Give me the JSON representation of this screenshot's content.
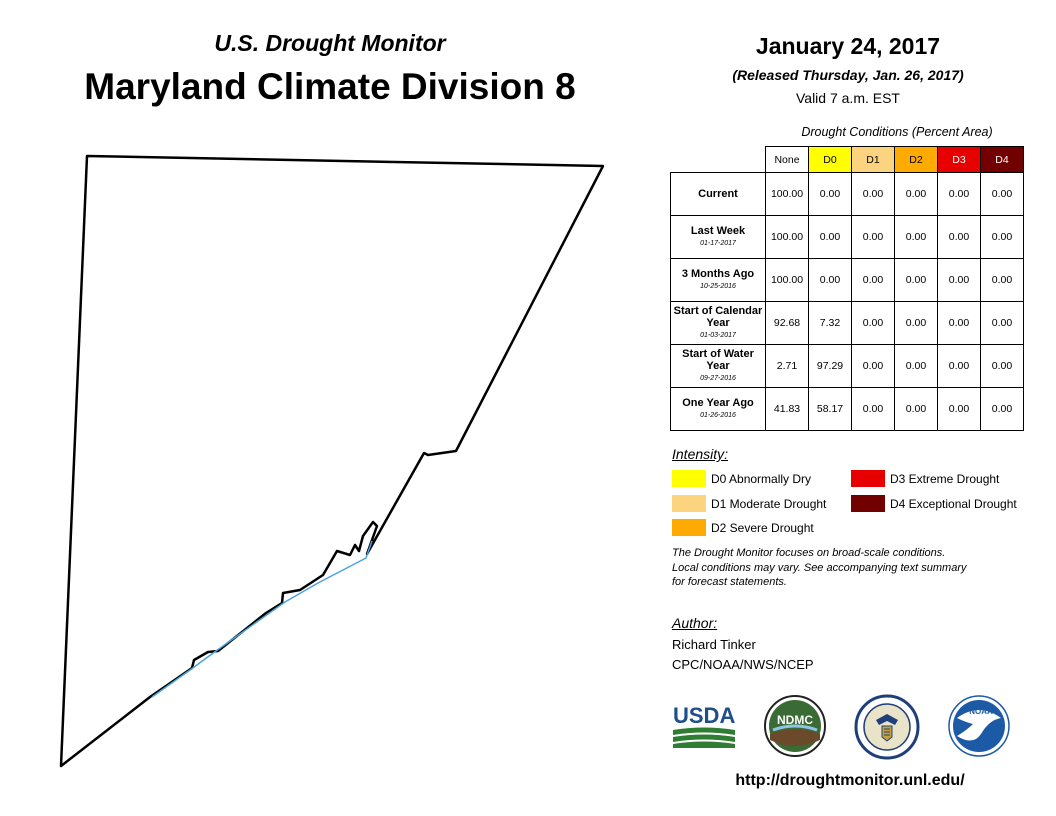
{
  "header": {
    "subtitle": "U.S. Drought Monitor",
    "title": "Maryland Climate Division 8"
  },
  "date_block": {
    "date": "January 24, 2017",
    "released": "(Released Thursday, Jan. 26, 2017)",
    "valid": "Valid 7 a.m. EST"
  },
  "conditions": {
    "title": "Drought Conditions (Percent Area)",
    "columns": [
      {
        "label": "None",
        "color": "#ffffff",
        "text_color": "#000000"
      },
      {
        "label": "D0",
        "color": "#ffff00",
        "text_color": "#000000"
      },
      {
        "label": "D1",
        "color": "#fcd37f",
        "text_color": "#000000"
      },
      {
        "label": "D2",
        "color": "#ffaa00",
        "text_color": "#000000"
      },
      {
        "label": "D3",
        "color": "#e60000",
        "text_color": "#ffffff"
      },
      {
        "label": "D4",
        "color": "#730000",
        "text_color": "#ffffff"
      }
    ],
    "rows": [
      {
        "label": "Current",
        "date": "",
        "values": [
          "100.00",
          "0.00",
          "0.00",
          "0.00",
          "0.00",
          "0.00"
        ]
      },
      {
        "label": "Last Week",
        "date": "01-17-2017",
        "values": [
          "100.00",
          "0.00",
          "0.00",
          "0.00",
          "0.00",
          "0.00"
        ]
      },
      {
        "label": "3 Months Ago",
        "date": "10-25-2016",
        "values": [
          "100.00",
          "0.00",
          "0.00",
          "0.00",
          "0.00",
          "0.00"
        ]
      },
      {
        "label": "Start of Calendar Year",
        "date": "01-03-2017",
        "values": [
          "92.68",
          "7.32",
          "0.00",
          "0.00",
          "0.00",
          "0.00"
        ]
      },
      {
        "label": "Start of Water Year",
        "date": "09-27-2016",
        "values": [
          "2.71",
          "97.29",
          "0.00",
          "0.00",
          "0.00",
          "0.00"
        ]
      },
      {
        "label": "One Year Ago",
        "date": "01-26-2016",
        "values": [
          "41.83",
          "58.17",
          "0.00",
          "0.00",
          "0.00",
          "0.00"
        ]
      }
    ]
  },
  "intensity": {
    "title": "Intensity:",
    "items": [
      {
        "label": "D0 Abnormally Dry",
        "color": "#ffff00"
      },
      {
        "label": "D1 Moderate Drought",
        "color": "#fcd37f"
      },
      {
        "label": "D2 Severe Drought",
        "color": "#ffaa00"
      },
      {
        "label": "D3 Extreme Drought",
        "color": "#e60000"
      },
      {
        "label": "D4 Exceptional Drought",
        "color": "#730000"
      }
    ]
  },
  "note": {
    "line1": "The Drought Monitor focuses on broad-scale conditions.",
    "line2": "Local conditions may vary. See accompanying text summary",
    "line3": "for forecast statements."
  },
  "author": {
    "title": "Author:",
    "name": "Richard Tinker",
    "org": "CPC/NOAA/NWS/NCEP"
  },
  "logos": {
    "usda": "USDA",
    "ndmc": "NDMC",
    "noaa": "NOAA"
  },
  "url": "http://droughtmonitor.unl.edu/"
}
